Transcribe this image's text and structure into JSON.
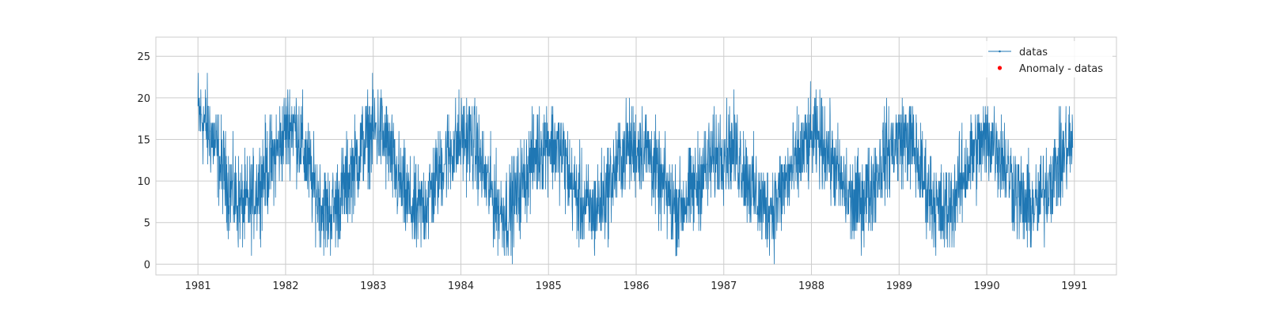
{
  "chart_data": {
    "type": "line",
    "title": "",
    "xlabel": "",
    "ylabel": "",
    "xlim": [
      1980.52,
      1991.48
    ],
    "ylim": [
      -1.3,
      27.3
    ],
    "xticks": [
      1981,
      1982,
      1983,
      1984,
      1985,
      1986,
      1987,
      1988,
      1989,
      1990,
      1991
    ],
    "xtick_labels": [
      "1981",
      "1982",
      "1983",
      "1984",
      "1985",
      "1986",
      "1987",
      "1988",
      "1989",
      "1990",
      "1991"
    ],
    "yticks": [
      0,
      5,
      10,
      15,
      20,
      25
    ],
    "ytick_labels": [
      "0",
      "5",
      "10",
      "15",
      "20",
      "25"
    ],
    "grid": true,
    "legend_position": "top-right",
    "series": [
      {
        "name": "datas",
        "color": "#1f77b4",
        "style": "line-with-small-markers",
        "note_period": "daily 1981-01-01 to 1990-12-31",
        "x": [
          1981.0,
          1981.08,
          1981.17,
          1981.25,
          1981.33,
          1981.42,
          1981.5,
          1981.58,
          1981.67,
          1981.75,
          1981.83,
          1981.92,
          1982.0,
          1982.08,
          1982.17,
          1982.25,
          1982.33,
          1982.42,
          1982.5,
          1982.58,
          1982.67,
          1982.75,
          1982.83,
          1982.92,
          1983.0,
          1983.08,
          1983.17,
          1983.25,
          1983.33,
          1983.42,
          1983.5,
          1983.58,
          1983.67,
          1983.75,
          1983.83,
          1983.92,
          1984.0,
          1984.08,
          1984.17,
          1984.25,
          1984.33,
          1984.42,
          1984.5,
          1984.58,
          1984.67,
          1984.75,
          1984.83,
          1984.92,
          1985.0,
          1985.08,
          1985.17,
          1985.25,
          1985.33,
          1985.42,
          1985.5,
          1985.58,
          1985.67,
          1985.75,
          1985.83,
          1985.92,
          1986.0,
          1986.08,
          1986.17,
          1986.25,
          1986.33,
          1986.42,
          1986.5,
          1986.58,
          1986.67,
          1986.75,
          1986.83,
          1986.92,
          1987.0,
          1987.08,
          1987.17,
          1987.25,
          1987.33,
          1987.42,
          1987.5,
          1987.58,
          1987.67,
          1987.75,
          1987.83,
          1987.92,
          1988.0,
          1988.08,
          1988.17,
          1988.25,
          1988.33,
          1988.42,
          1988.5,
          1988.58,
          1988.67,
          1988.75,
          1988.83,
          1988.92,
          1989.0,
          1989.08,
          1989.17,
          1989.25,
          1989.33,
          1989.42,
          1989.5,
          1989.58,
          1989.67,
          1989.75,
          1989.83,
          1989.92,
          1990.0,
          1990.08,
          1990.17,
          1990.25,
          1990.33,
          1990.42,
          1990.5,
          1990.58,
          1990.67,
          1990.75,
          1990.83,
          1990.92
        ],
        "y": [
          18,
          17,
          15,
          12,
          10,
          8,
          7,
          7,
          9,
          11,
          12,
          14,
          16,
          17,
          15,
          12,
          9,
          7,
          6,
          7,
          9,
          11,
          13,
          15,
          16,
          16,
          14,
          11,
          9,
          7,
          6,
          7,
          9,
          11,
          13,
          14,
          15,
          15,
          14,
          11,
          9,
          7,
          6,
          7,
          9,
          11,
          13,
          14,
          15,
          14,
          13,
          10,
          8,
          7,
          6,
          7,
          9,
          11,
          13,
          14,
          14,
          14,
          13,
          10,
          9,
          7,
          7,
          8,
          9,
          11,
          12,
          13,
          14,
          14,
          13,
          11,
          9,
          7,
          7,
          7,
          9,
          11,
          12,
          14,
          15,
          15,
          14,
          12,
          10,
          8,
          7,
          8,
          9,
          11,
          13,
          14,
          15,
          15,
          14,
          11,
          9,
          7,
          6,
          7,
          9,
          11,
          13,
          14,
          15,
          15,
          13,
          11,
          9,
          7,
          7,
          7,
          9,
          11,
          12,
          14
        ],
        "approx_daily_range": [
          0,
          26
        ]
      },
      {
        "name": "Anomaly - datas",
        "color": "#ff0000",
        "style": "scatter",
        "x": [],
        "y": []
      }
    ]
  }
}
